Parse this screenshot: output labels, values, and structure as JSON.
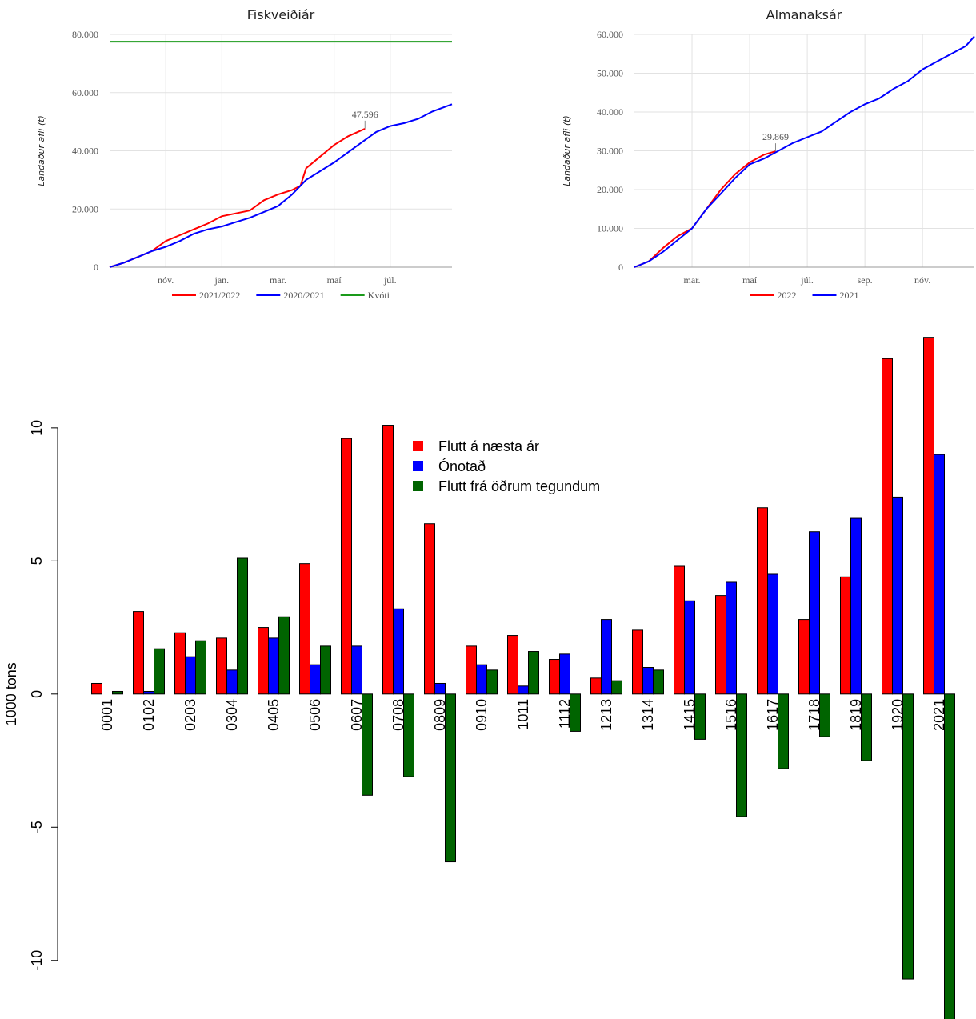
{
  "chart_data": [
    {
      "type": "line",
      "title": "Fiskveiðiár",
      "y_label": "Landaður afli (t)",
      "xlim": [
        0,
        12.2
      ],
      "xticks": [
        {
          "value": 2,
          "label": "nóv."
        },
        {
          "value": 4,
          "label": "jan."
        },
        {
          "value": 6,
          "label": "mar."
        },
        {
          "value": 8,
          "label": "maí"
        },
        {
          "value": 10,
          "label": "júl."
        }
      ],
      "ylim": [
        0,
        80000
      ],
      "yticks": [
        0,
        {
          "value": 20000,
          "label": "20.000"
        },
        {
          "value": 40000,
          "label": "40.000"
        },
        {
          "value": 60000,
          "label": "60.000"
        },
        {
          "value": 80000,
          "label": "80.000"
        }
      ],
      "grid": true,
      "legend": "bottom",
      "series": [
        {
          "name": "2021/2022",
          "color": "#ff0000",
          "x": [
            0,
            0.5,
            1,
            1.5,
            2,
            2.5,
            3,
            3.5,
            4,
            4.5,
            5,
            5.5,
            6,
            6.5,
            6.8,
            7,
            7.5,
            8,
            8.5,
            9.1
          ],
          "values": [
            0,
            1500,
            3500,
            5500,
            9000,
            11000,
            13000,
            15000,
            17500,
            18500,
            19500,
            23000,
            25000,
            26500,
            28000,
            34000,
            38000,
            42000,
            45000,
            47596
          ],
          "value_labels": [
            null,
            null,
            null,
            null,
            null,
            null,
            null,
            null,
            null,
            null,
            null,
            null,
            null,
            null,
            null,
            null,
            null,
            null,
            null,
            "47.596"
          ]
        },
        {
          "name": "2020/2021",
          "color": "#0000ff",
          "x": [
            0,
            0.5,
            1,
            1.5,
            2,
            2.5,
            3,
            3.5,
            4,
            4.5,
            5,
            5.5,
            6,
            6.5,
            7,
            7.5,
            8,
            8.5,
            9,
            9.5,
            10,
            10.5,
            11,
            11.5,
            12.2
          ],
          "values": [
            0,
            1500,
            3500,
            5500,
            7000,
            9000,
            11500,
            13000,
            14000,
            15500,
            17000,
            19000,
            21000,
            25000,
            30000,
            33000,
            36000,
            39500,
            43000,
            46500,
            48500,
            49500,
            51000,
            53500,
            56000
          ]
        },
        {
          "name": "Kvóti",
          "color": "#1a9a1a",
          "x": [
            0,
            12.2
          ],
          "values": [
            77500,
            77500
          ]
        }
      ]
    },
    {
      "type": "line",
      "title": "Almanaksár",
      "y_label": "Landaður afli (t)",
      "xlim": [
        0,
        11.8
      ],
      "xticks": [
        {
          "value": 2,
          "label": "mar."
        },
        {
          "value": 4,
          "label": "maí"
        },
        {
          "value": 6,
          "label": "júl."
        },
        {
          "value": 8,
          "label": "sep."
        },
        {
          "value": 10,
          "label": "nóv."
        }
      ],
      "ylim": [
        0,
        60000
      ],
      "yticks": [
        0,
        {
          "value": 10000,
          "label": "10.000"
        },
        {
          "value": 20000,
          "label": "20.000"
        },
        {
          "value": 30000,
          "label": "30.000"
        },
        {
          "value": 40000,
          "label": "40.000"
        },
        {
          "value": 50000,
          "label": "50.000"
        },
        {
          "value": 60000,
          "label": "60.000"
        }
      ],
      "grid": true,
      "legend": "bottom",
      "series": [
        {
          "name": "2022",
          "color": "#ff0000",
          "x": [
            0,
            0.5,
            1,
            1.5,
            2,
            2.5,
            3,
            3.5,
            4,
            4.5,
            4.9
          ],
          "values": [
            0,
            1500,
            5000,
            8000,
            10000,
            15000,
            20000,
            24000,
            27000,
            29000,
            29869
          ],
          "value_labels": [
            null,
            null,
            null,
            null,
            null,
            null,
            null,
            null,
            null,
            null,
            "29.869"
          ]
        },
        {
          "name": "2021",
          "color": "#0000ff",
          "x": [
            0,
            0.5,
            1,
            1.5,
            2,
            2.5,
            3,
            3.5,
            4,
            4.5,
            5,
            5.5,
            6,
            6.5,
            7,
            7.5,
            8,
            8.5,
            9,
            9.5,
            10,
            10.5,
            11,
            11.5,
            11.8
          ],
          "values": [
            0,
            1500,
            4000,
            7000,
            10000,
            15000,
            19000,
            23000,
            26500,
            28000,
            30000,
            32000,
            33500,
            35000,
            37500,
            40000,
            42000,
            43500,
            46000,
            48000,
            51000,
            53000,
            55000,
            57000,
            59500
          ]
        }
      ]
    },
    {
      "type": "bar",
      "y_label": "1000 tons",
      "categories": [
        "0001",
        "0102",
        "0203",
        "0304",
        "0405",
        "0506",
        "0607",
        "0708",
        "0809",
        "0910",
        "1011",
        "1112",
        "1213",
        "1314",
        "1415",
        "1516",
        "1617",
        "1718",
        "1819",
        "1920",
        "2021"
      ],
      "ylim": [
        -12.2,
        13.6
      ],
      "yticks": [
        -10,
        -5,
        0,
        5,
        10
      ],
      "legend": "upper center",
      "series": [
        {
          "name": "Flutt á næsta ár",
          "color": "#ff0000",
          "values": [
            0.4,
            3.1,
            2.3,
            2.1,
            2.5,
            4.9,
            9.6,
            10.1,
            6.4,
            1.8,
            2.2,
            1.3,
            0.6,
            2.4,
            4.8,
            3.7,
            7.0,
            2.8,
            4.4,
            12.6,
            13.4
          ]
        },
        {
          "name": "Ónotað",
          "color": "#0000ff",
          "values": [
            0.0,
            0.1,
            1.4,
            0.9,
            2.1,
            1.1,
            1.8,
            3.2,
            0.4,
            1.1,
            0.3,
            1.5,
            2.8,
            1.0,
            3.5,
            4.2,
            4.5,
            6.1,
            6.6,
            7.4,
            9.0
          ]
        },
        {
          "name": "Flutt frá öðrum tegundum",
          "color": "#006400",
          "values": [
            0.1,
            1.7,
            2.0,
            5.1,
            2.9,
            1.8,
            -3.8,
            -3.1,
            -6.3,
            0.9,
            1.6,
            -1.4,
            0.5,
            0.9,
            -1.7,
            -4.6,
            -2.8,
            -1.6,
            -2.5,
            -10.7,
            -12.4
          ]
        }
      ]
    }
  ]
}
